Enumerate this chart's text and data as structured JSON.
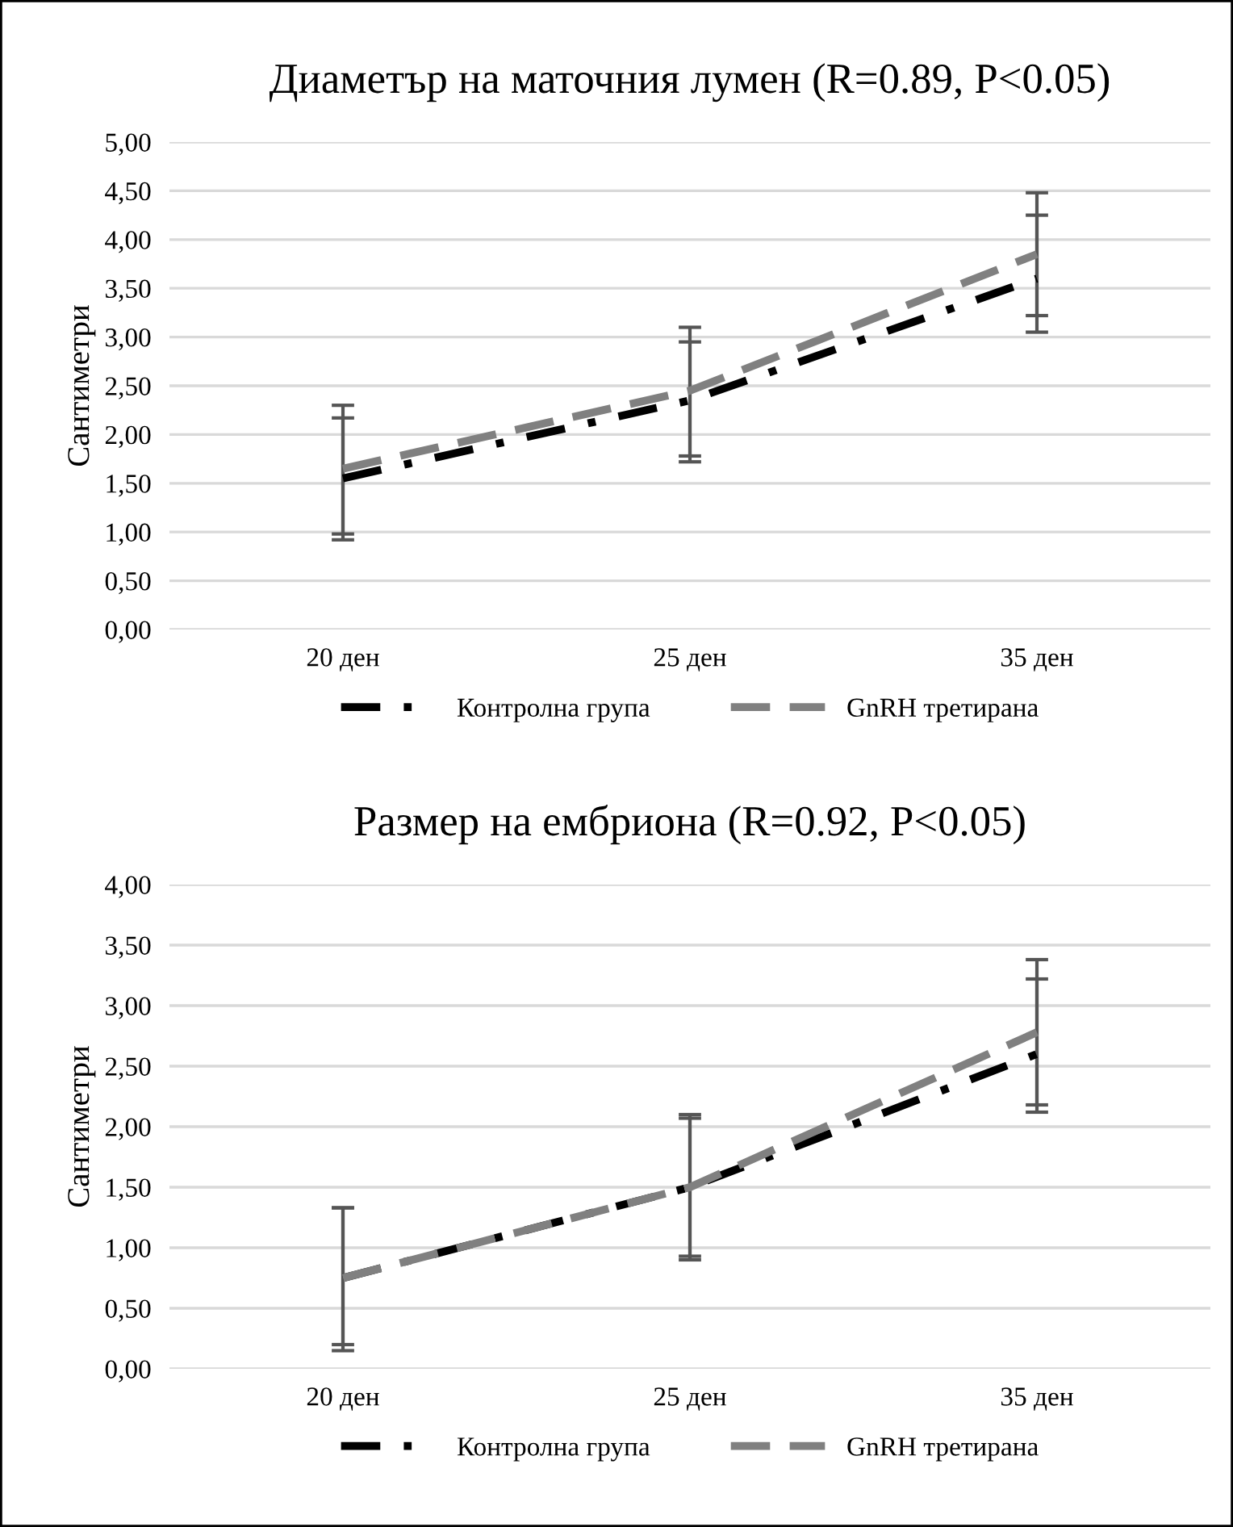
{
  "chart_data": [
    {
      "type": "line",
      "title": "Диаметър на маточния лумен (R=0.89, P<0.05)",
      "ylabel": "Сантиметри",
      "categories": [
        "20 ден",
        "25 ден",
        "35 ден"
      ],
      "ylim": [
        0,
        5
      ],
      "yticks": [
        {
          "value": 0,
          "label": "0,00"
        },
        {
          "value": 0.5,
          "label": "0,50"
        },
        {
          "value": 1,
          "label": "1,00"
        },
        {
          "value": 1.5,
          "label": "1,50"
        },
        {
          "value": 2,
          "label": "2,00"
        },
        {
          "value": 2.5,
          "label": "2,50"
        },
        {
          "value": 3,
          "label": "3,00"
        },
        {
          "value": 3.5,
          "label": "3,50"
        },
        {
          "value": 4,
          "label": "4,00"
        },
        {
          "value": 4.5,
          "label": "4,50"
        },
        {
          "value": 5,
          "label": "5,00"
        }
      ],
      "grid": "y",
      "legend": "bottom",
      "marker": "none",
      "series": [
        {
          "name": "Контролна група",
          "color": "#000000",
          "line_style": "dashdot",
          "values": [
            1.55,
            2.35,
            3.6
          ],
          "errors": [
            [
              0.92,
              2.17
            ],
            [
              1.72,
              2.95
            ],
            [
              3.05,
              4.25
            ]
          ]
        },
        {
          "name": "GnRH третирана",
          "color": "#808080",
          "line_style": "dashed",
          "values": [
            1.65,
            2.45,
            3.85
          ],
          "errors": [
            [
              0.98,
              2.3
            ],
            [
              1.78,
              3.1
            ],
            [
              3.22,
              4.48
            ]
          ]
        }
      ]
    },
    {
      "type": "line",
      "title": "Размер на ембриона (R=0.92, P<0.05)",
      "ylabel": "Сантиметри",
      "categories": [
        "20 ден",
        "25 ден",
        "35 ден"
      ],
      "ylim": [
        0,
        4
      ],
      "yticks": [
        {
          "value": 0,
          "label": "0,00"
        },
        {
          "value": 0.5,
          "label": "0,50"
        },
        {
          "value": 1,
          "label": "1,00"
        },
        {
          "value": 1.5,
          "label": "1,50"
        },
        {
          "value": 2,
          "label": "2,00"
        },
        {
          "value": 2.5,
          "label": "2,50"
        },
        {
          "value": 3,
          "label": "3,00"
        },
        {
          "value": 3.5,
          "label": "3,50"
        },
        {
          "value": 4,
          "label": "4,00"
        }
      ],
      "grid": "y",
      "legend": "bottom",
      "marker": "none",
      "series": [
        {
          "name": "Контролна група",
          "color": "#000000",
          "line_style": "dashdot",
          "values": [
            0.75,
            1.5,
            2.6
          ],
          "errors": [
            [
              0.15,
              1.33
            ],
            [
              0.9,
              2.07
            ],
            [
              2.12,
              3.22
            ]
          ]
        },
        {
          "name": "GnRH третирана",
          "color": "#808080",
          "line_style": "dashed",
          "values": [
            0.75,
            1.5,
            2.78
          ],
          "errors": [
            [
              0.2,
              1.33
            ],
            [
              0.93,
              2.1
            ],
            [
              2.18,
              3.38
            ]
          ]
        }
      ]
    }
  ]
}
